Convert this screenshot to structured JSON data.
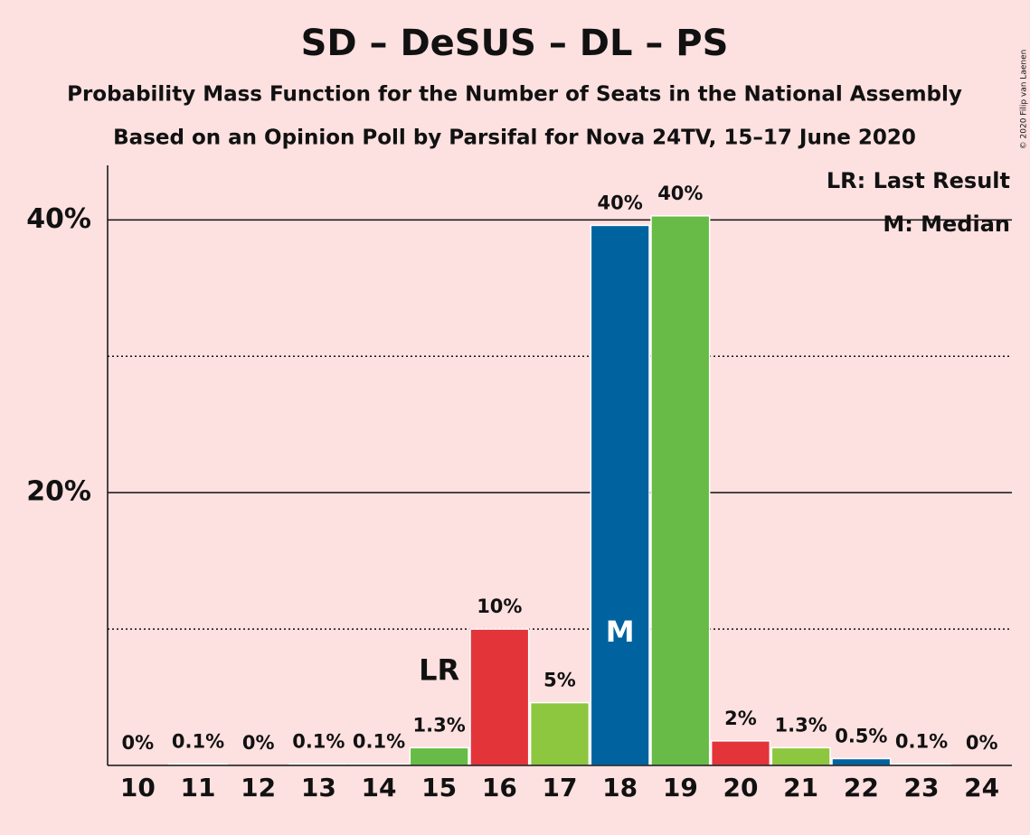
{
  "chart_data": {
    "type": "bar",
    "title": "SD – DeSUS – DL – PS",
    "subtitle": "Probability Mass Function for the Number of Seats in the National Assembly",
    "subtitle2": "Based on an Opinion Poll by Parsifal for Nova 24TV, 15–17 June 2020",
    "credit": "© 2020 Filip van Laenen",
    "categories": [
      "10",
      "11",
      "12",
      "13",
      "14",
      "15",
      "16",
      "17",
      "18",
      "19",
      "20",
      "21",
      "22",
      "23",
      "24"
    ],
    "values": [
      0,
      0.1,
      0,
      0.1,
      0.1,
      1.3,
      10,
      4.6,
      39.6,
      40.3,
      1.8,
      1.3,
      0.5,
      0.1,
      0
    ],
    "value_labels": [
      "0%",
      "0.1%",
      "0%",
      "0.1%",
      "0.1%",
      "1.3%",
      "10%",
      "5%",
      "40%",
      "40%",
      "2%",
      "1.3%",
      "0.5%",
      "0.1%",
      "0%"
    ],
    "colors": [
      "#0063a0",
      "#67bb46",
      "#e3343a",
      "#8dc63f",
      "#0063a0",
      "#67bb46",
      "#e3343a",
      "#8dc63f",
      "#0063a0",
      "#67bb46",
      "#e3343a",
      "#8dc63f",
      "#0063a0",
      "#67bb46",
      "#e3343a"
    ],
    "ylim": [
      0,
      44
    ],
    "yticks": [
      {
        "value": 20,
        "label": "20%"
      },
      {
        "value": 40,
        "label": "40%"
      }
    ],
    "minor_grid": [
      10,
      30
    ],
    "annotations": [
      {
        "text": "LR",
        "category": "15"
      },
      {
        "text": "M",
        "category": "18"
      }
    ],
    "legend_notes": [
      "LR: Last Result",
      "M: Median"
    ]
  }
}
